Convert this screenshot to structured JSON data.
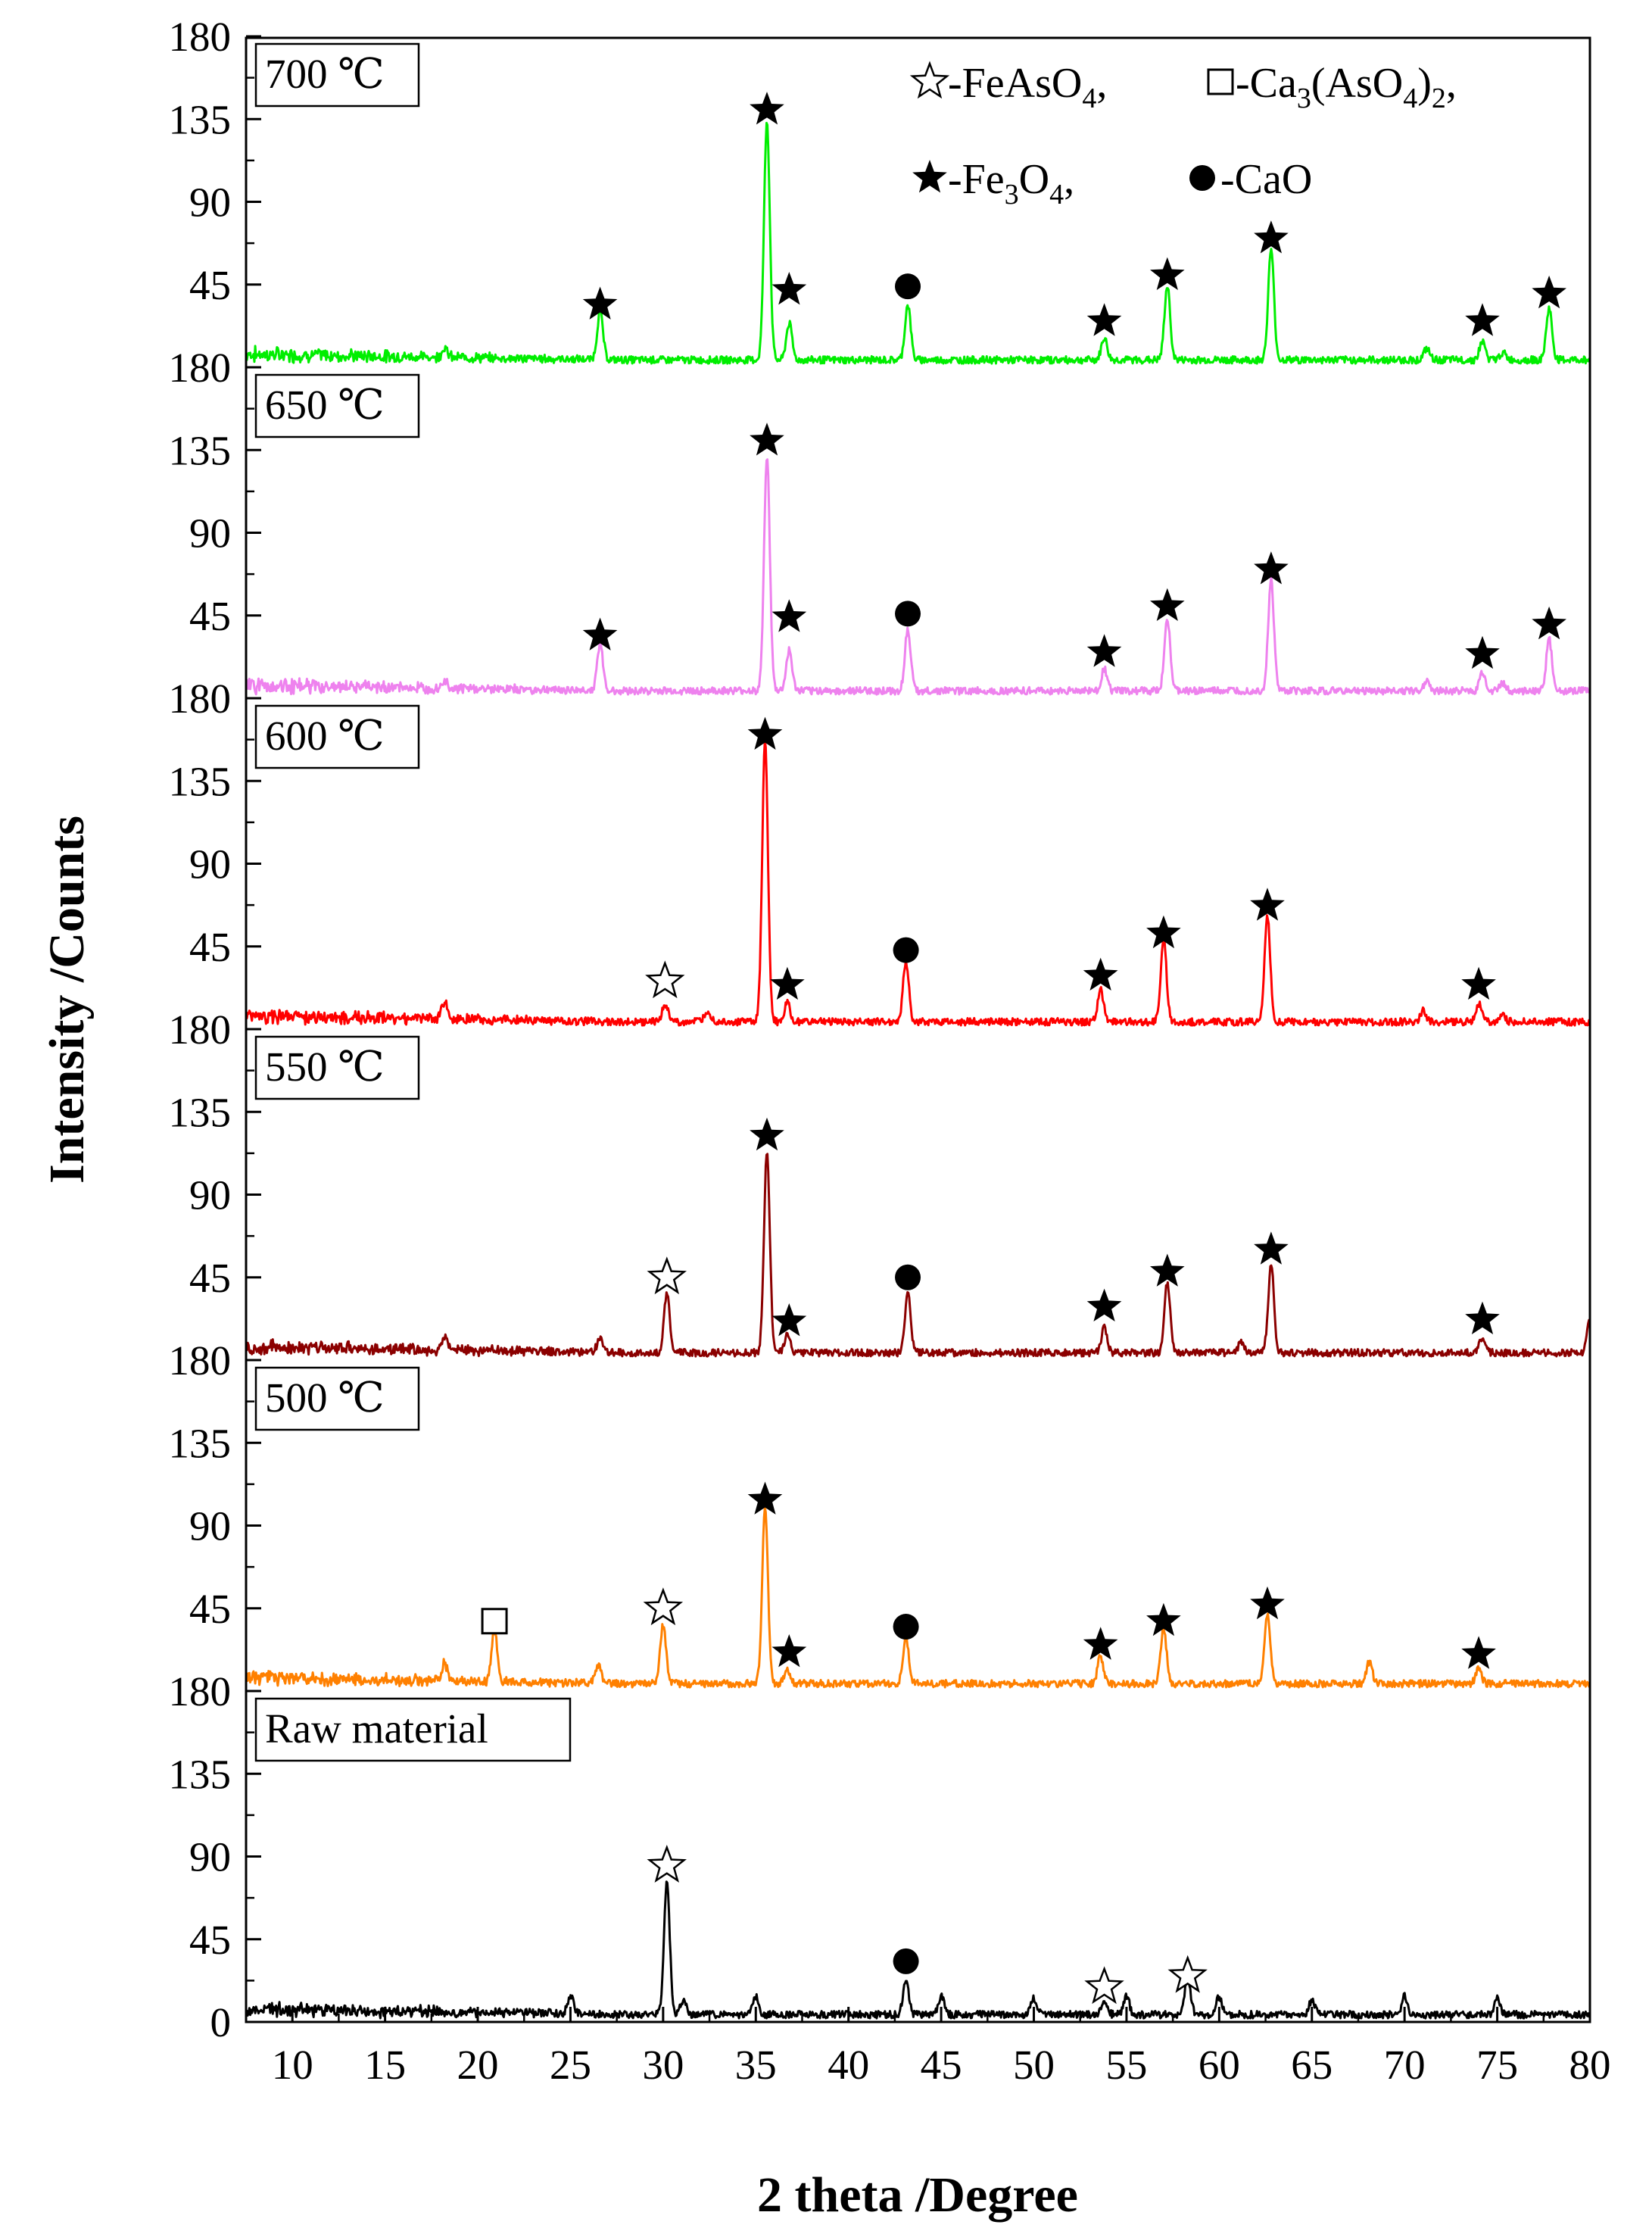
{
  "chart_data": {
    "type": "line",
    "title": "",
    "xlabel": "2 theta /Degree",
    "ylabel": "Intensity /Counts",
    "xlim": [
      7.5,
      80
    ],
    "x_ticks": [
      10,
      15,
      20,
      25,
      30,
      35,
      40,
      45,
      50,
      55,
      60,
      65,
      70,
      75,
      80
    ],
    "y_ticks_per_panel": [
      0,
      45,
      90,
      135,
      180
    ],
    "panel_ylim": [
      0,
      180
    ],
    "legend": {
      "position": "top-right",
      "entries": [
        {
          "symbol": "open-star",
          "label": "-FeAsO",
          "sub": "4",
          "tail": ","
        },
        {
          "symbol": "open-square",
          "label": "-Ca",
          "sub": "3",
          "mid": "(AsO",
          "sub2": "4",
          "tail": ")",
          "sub3": "2",
          "tail2": ","
        },
        {
          "symbol": "filled-star",
          "label": "-Fe",
          "sub": "3",
          "mid": "O",
          "sub2": "4",
          "tail": ","
        },
        {
          "symbol": "filled-circle",
          "label": "-CaO"
        }
      ]
    },
    "series": [
      {
        "name": "700 ℃",
        "color": "#00ee00",
        "peaks": [
          [
            18.2,
            5
          ],
          [
            26.6,
            26
          ],
          [
            35.6,
            130
          ],
          [
            36.8,
            20
          ],
          [
            43.2,
            30
          ],
          [
            53.8,
            12
          ],
          [
            57.2,
            40
          ],
          [
            62.8,
            60
          ],
          [
            71.2,
            6
          ],
          [
            74.2,
            10
          ],
          [
            75.3,
            4
          ],
          [
            77.8,
            28
          ]
        ],
        "markers": [
          [
            "filled-star",
            26.6,
            34
          ],
          [
            "filled-star",
            35.6,
            140
          ],
          [
            "filled-star",
            36.8,
            42
          ],
          [
            "filled-circle",
            43.2,
            44
          ],
          [
            "filled-star",
            53.8,
            25
          ],
          [
            "filled-star",
            57.2,
            50
          ],
          [
            "filled-star",
            62.8,
            70
          ],
          [
            "filled-star",
            74.2,
            25
          ],
          [
            "filled-star",
            77.8,
            40
          ]
        ]
      },
      {
        "name": "650 ℃",
        "color": "#ee82ee",
        "peaks": [
          [
            18.2,
            4
          ],
          [
            26.6,
            25
          ],
          [
            35.6,
            128
          ],
          [
            36.8,
            22
          ],
          [
            43.2,
            34
          ],
          [
            53.8,
            12
          ],
          [
            57.2,
            40
          ],
          [
            62.8,
            60
          ],
          [
            71.2,
            6
          ],
          [
            74.2,
            10
          ],
          [
            75.3,
            4
          ],
          [
            77.8,
            28
          ]
        ],
        "markers": [
          [
            "filled-star",
            26.6,
            34
          ],
          [
            "filled-star",
            35.6,
            140
          ],
          [
            "filled-star",
            36.8,
            44
          ],
          [
            "filled-circle",
            43.2,
            46
          ],
          [
            "filled-star",
            53.8,
            25
          ],
          [
            "filled-star",
            57.2,
            50
          ],
          [
            "filled-star",
            62.8,
            70
          ],
          [
            "filled-star",
            74.2,
            24
          ],
          [
            "filled-star",
            77.8,
            40
          ]
        ]
      },
      {
        "name": "600 ℃",
        "color": "#ff0000",
        "peaks": [
          [
            18.2,
            10
          ],
          [
            30.1,
            10
          ],
          [
            32.4,
            6
          ],
          [
            35.5,
            152
          ],
          [
            36.7,
            10
          ],
          [
            43.1,
            33
          ],
          [
            53.6,
            18
          ],
          [
            57.0,
            45
          ],
          [
            62.6,
            57
          ],
          [
            71.0,
            6
          ],
          [
            74.0,
            10
          ],
          [
            75.3,
            4
          ]
        ],
        "markers": [
          [
            "open-star",
            30.1,
            26
          ],
          [
            "filled-star",
            35.5,
            160
          ],
          [
            "filled-star",
            36.7,
            24
          ],
          [
            "filled-circle",
            43.1,
            43
          ],
          [
            "filled-star",
            53.6,
            29
          ],
          [
            "filled-star",
            57.0,
            52
          ],
          [
            "filled-star",
            62.6,
            67
          ],
          [
            "filled-star",
            74.0,
            24
          ]
        ]
      },
      {
        "name": "550 ℃",
        "color": "#8b0000",
        "peaks": [
          [
            18.2,
            8
          ],
          [
            26.6,
            8
          ],
          [
            30.2,
            32
          ],
          [
            35.6,
            110
          ],
          [
            36.7,
            10
          ],
          [
            43.2,
            33
          ],
          [
            53.8,
            14
          ],
          [
            57.2,
            38
          ],
          [
            61.2,
            6
          ],
          [
            62.8,
            48
          ],
          [
            74.2,
            8
          ],
          [
            80.0,
            18
          ]
        ],
        "markers": [
          [
            "open-star",
            30.2,
            45
          ],
          [
            "filled-star",
            35.6,
            122
          ],
          [
            "filled-star",
            36.8,
            21
          ],
          [
            "filled-circle",
            43.2,
            45
          ],
          [
            "filled-star",
            53.8,
            29
          ],
          [
            "filled-star",
            57.2,
            48
          ],
          [
            "filled-star",
            62.8,
            60
          ],
          [
            "filled-star",
            74.2,
            22
          ]
        ]
      },
      {
        "name": "500 ℃",
        "color": "#ff8000",
        "peaks": [
          [
            18.2,
            10
          ],
          [
            20.9,
            28
          ],
          [
            26.5,
            10
          ],
          [
            30.0,
            32
          ],
          [
            35.5,
            95
          ],
          [
            36.7,
            8
          ],
          [
            43.1,
            25
          ],
          [
            53.6,
            15
          ],
          [
            57.0,
            30
          ],
          [
            62.6,
            38
          ],
          [
            68.1,
            12
          ],
          [
            74.0,
            8
          ]
        ],
        "markers": [
          [
            "open-square",
            20.9,
            38
          ],
          [
            "open-star",
            30.0,
            45
          ],
          [
            "filled-star",
            35.5,
            104
          ],
          [
            "filled-star",
            36.8,
            21
          ],
          [
            "filled-circle",
            43.1,
            35
          ],
          [
            "filled-star",
            53.6,
            25
          ],
          [
            "filled-star",
            57.0,
            38
          ],
          [
            "filled-star",
            62.6,
            47
          ],
          [
            "filled-star",
            74.0,
            20
          ]
        ]
      },
      {
        "name": "Raw material",
        "color": "#000000",
        "peaks": [
          [
            25.0,
            10
          ],
          [
            30.2,
            72
          ],
          [
            31.1,
            8
          ],
          [
            35.0,
            10
          ],
          [
            43.1,
            18
          ],
          [
            45.0,
            10
          ],
          [
            50.0,
            9
          ],
          [
            53.8,
            8
          ],
          [
            55.0,
            10
          ],
          [
            58.3,
            20
          ],
          [
            60.0,
            10
          ],
          [
            65.0,
            8
          ],
          [
            70.0,
            10
          ],
          [
            75.0,
            9
          ]
        ],
        "markers": [
          [
            "open-star",
            30.2,
            85
          ],
          [
            "filled-circle",
            43.1,
            33
          ],
          [
            "open-star",
            53.8,
            19
          ],
          [
            "open-star",
            58.3,
            25
          ]
        ]
      }
    ]
  }
}
